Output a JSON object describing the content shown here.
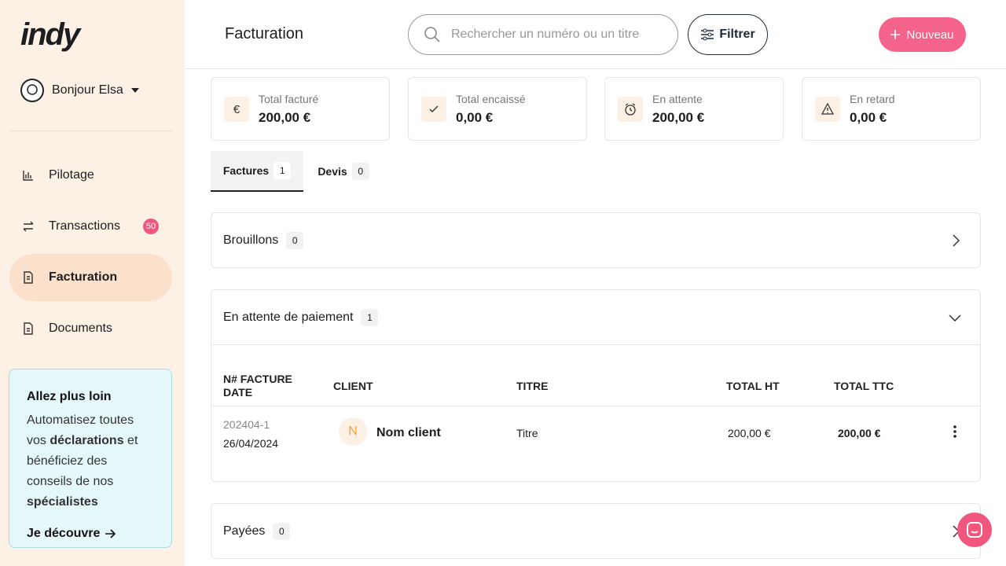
{
  "sidebar": {
    "logo": "indy",
    "greeting": "Bonjour Elsa",
    "nav": [
      {
        "label": "Pilotage"
      },
      {
        "label": "Transactions",
        "badge": 50
      },
      {
        "label": "Facturation"
      },
      {
        "label": "Documents"
      }
    ],
    "promo": {
      "title": "Allez plus loin",
      "text": [
        "Automatisez toutes vos ",
        "déclarations",
        " et bénéficiez des conseils de nos ",
        "spécialistes"
      ],
      "link": "Je découvre"
    }
  },
  "header": {
    "title": "Facturation",
    "search_placeholder": "Rechercher un numéro ou un titre",
    "filter": "Filtrer",
    "new": "Nouveau"
  },
  "stats": [
    {
      "label": "Total facturé",
      "value": "200,00 €"
    },
    {
      "label": "Total encaissé",
      "value": "0,00 €"
    },
    {
      "label": "En attente",
      "value": "200,00 €"
    },
    {
      "label": "En retard",
      "value": "0,00 €"
    }
  ],
  "tabs": [
    {
      "label": "Factures",
      "count": 1
    },
    {
      "label": "Devis",
      "count": 0
    }
  ],
  "sections": [
    {
      "label": "Brouillons",
      "count": 0
    },
    {
      "label": "En attente de paiement",
      "count": 1
    },
    {
      "label": "Payées",
      "count": 0
    }
  ],
  "table": {
    "headers": [
      "N# FACTURE",
      "DATE",
      "CLIENT",
      "TITRE",
      "TOTAL HT",
      "TOTAL TTC"
    ],
    "rows": [
      {
        "number": "202404-1",
        "date": "26/04/2024",
        "avatar": "N",
        "client": "Nom client",
        "title": "Titre",
        "total_ht": "200,00 €",
        "total_ttc": "200,00 €"
      }
    ]
  }
}
